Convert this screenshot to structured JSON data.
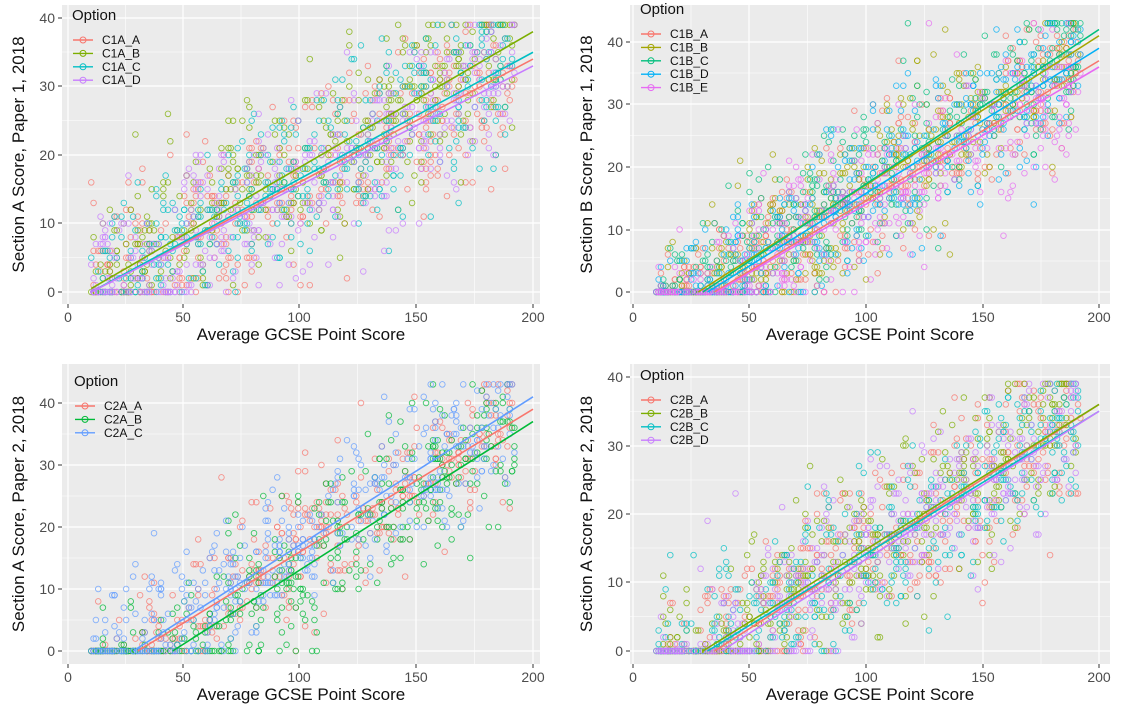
{
  "chart_data": [
    {
      "type": "scatter",
      "xlabel": "Average GCSE Point Score",
      "ylabel": "Section A Score, Paper 1, 2018",
      "xlim": [
        0,
        200
      ],
      "ylim": [
        0,
        40
      ],
      "xticks": [
        0,
        50,
        100,
        150,
        200
      ],
      "yticks": [
        0,
        10,
        20,
        30,
        40
      ],
      "grid": true,
      "legend_title": "Option",
      "legend_position": "top-left",
      "series": [
        {
          "name": "C1A_A",
          "color": "#F8766D",
          "trend": [
            [
              10,
              0
            ],
            [
              200,
              34
            ]
          ]
        },
        {
          "name": "C1A_B",
          "color": "#7CAE00",
          "trend": [
            [
              10,
              0.5
            ],
            [
              200,
              38
            ]
          ]
        },
        {
          "name": "C1A_C",
          "color": "#00BFC4",
          "trend": [
            [
              10,
              0
            ],
            [
              200,
              35
            ]
          ]
        },
        {
          "name": "C1A_D",
          "color": "#C77CFF",
          "trend": [
            [
              10,
              0
            ],
            [
              200,
              33
            ]
          ]
        }
      ]
    },
    {
      "type": "scatter",
      "xlabel": "Average GCSE Point Score",
      "ylabel": "Section B Score, Paper 1, 2018",
      "xlim": [
        0,
        200
      ],
      "ylim": [
        0,
        44
      ],
      "xticks": [
        0,
        50,
        100,
        150,
        200
      ],
      "yticks": [
        0,
        10,
        20,
        30,
        40
      ],
      "grid": true,
      "legend_title": "Option",
      "legend_position": "top-left",
      "series": [
        {
          "name": "C1B_A",
          "color": "#F8766D",
          "trend": [
            [
              35,
              0
            ],
            [
              200,
              37
            ]
          ]
        },
        {
          "name": "C1B_B",
          "color": "#A3A500",
          "trend": [
            [
              28,
              0
            ],
            [
              200,
              41
            ]
          ]
        },
        {
          "name": "C1B_C",
          "color": "#00BF7D",
          "trend": [
            [
              30,
              0
            ],
            [
              200,
              42
            ]
          ]
        },
        {
          "name": "C1B_D",
          "color": "#00B0F6",
          "trend": [
            [
              32,
              0
            ],
            [
              200,
              39
            ]
          ]
        },
        {
          "name": "C1B_E",
          "color": "#E76BF3",
          "trend": [
            [
              36,
              0
            ],
            [
              200,
              36
            ]
          ]
        }
      ]
    },
    {
      "type": "scatter",
      "xlabel": "Average GCSE Point Score",
      "ylabel": "Section A Score, Paper 2, 2018",
      "xlim": [
        0,
        200
      ],
      "ylim": [
        0,
        44
      ],
      "xticks": [
        0,
        50,
        100,
        150,
        200
      ],
      "yticks": [
        0,
        10,
        20,
        30,
        40
      ],
      "grid": true,
      "legend_title": "Option",
      "legend_position": "top-left",
      "series": [
        {
          "name": "C2A_A",
          "color": "#F8766D",
          "trend": [
            [
              30,
              0
            ],
            [
              200,
              39
            ]
          ]
        },
        {
          "name": "C2A_B",
          "color": "#00BA38",
          "trend": [
            [
              45,
              0
            ],
            [
              200,
              37
            ]
          ]
        },
        {
          "name": "C2A_C",
          "color": "#619CFF",
          "trend": [
            [
              28,
              0
            ],
            [
              200,
              41
            ]
          ]
        }
      ]
    },
    {
      "type": "scatter",
      "xlabel": "Average GCSE Point Score",
      "ylabel": "Section A Score, Paper 2, 2018",
      "xlim": [
        0,
        200
      ],
      "ylim": [
        0,
        40
      ],
      "xticks": [
        0,
        50,
        100,
        150,
        200
      ],
      "yticks": [
        0,
        10,
        20,
        30,
        40
      ],
      "grid": true,
      "legend_title": "Option",
      "legend_position": "top-left",
      "series": [
        {
          "name": "C2B_A",
          "color": "#F8766D",
          "trend": [
            [
              35,
              0
            ],
            [
              200,
              36
            ]
          ]
        },
        {
          "name": "C2B_B",
          "color": "#7CAE00",
          "trend": [
            [
              30,
              0
            ],
            [
              200,
              36
            ]
          ]
        },
        {
          "name": "C2B_C",
          "color": "#00BFC4",
          "trend": [
            [
              32,
              0
            ],
            [
              200,
              35
            ]
          ]
        },
        {
          "name": "C2B_D",
          "color": "#C77CFF",
          "trend": [
            [
              38,
              0
            ],
            [
              200,
              35
            ]
          ]
        }
      ]
    }
  ]
}
